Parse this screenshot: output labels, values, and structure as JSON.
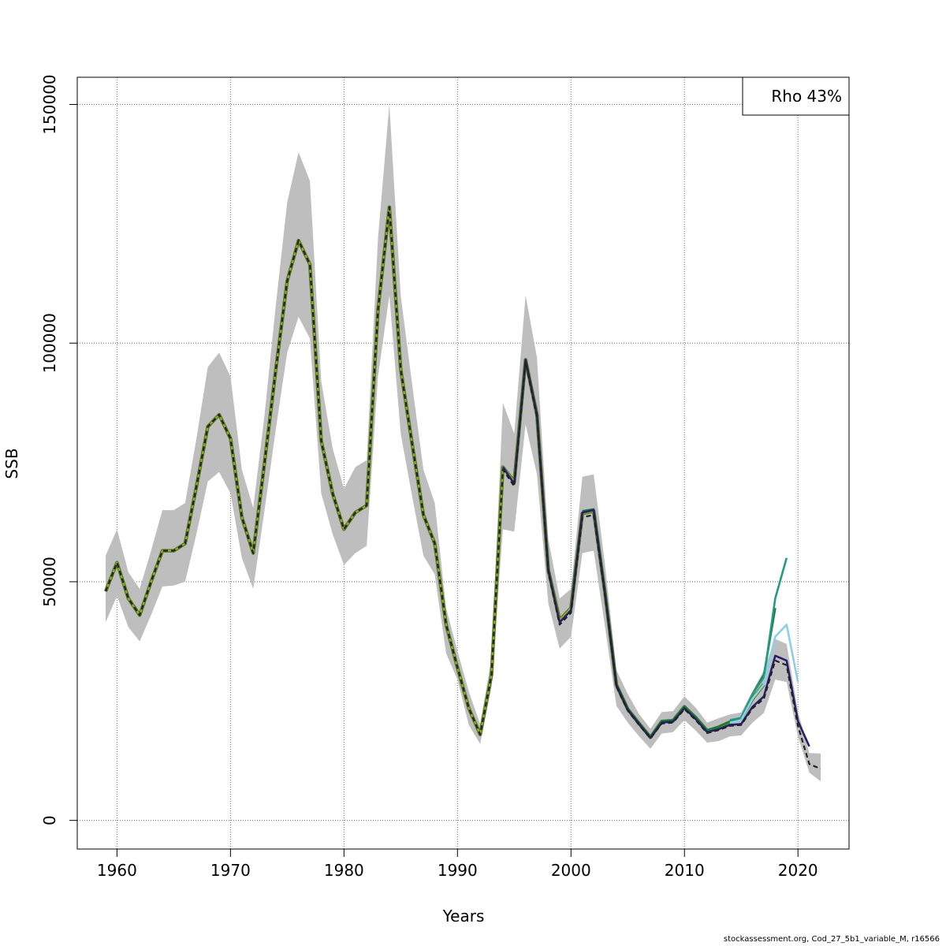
{
  "footer": "stockassessment.org, Cod_27_5b1_variable_M, r16566",
  "chart_data": {
    "type": "line",
    "title": "",
    "xlabel": "Years",
    "ylabel": "SSB",
    "xlim": [
      1956.5,
      2024.5
    ],
    "ylim": [
      -6000,
      155700
    ],
    "xticks": [
      1960,
      1970,
      1980,
      1990,
      2000,
      2010,
      2020
    ],
    "yticks": [
      0,
      50000,
      100000,
      150000
    ],
    "grid": true,
    "legend": {
      "position": "top-right",
      "entries": [
        "Rho 43%"
      ]
    },
    "colors": {
      "band": "#bebebe",
      "final": "#222222",
      "peel1": "#26206b",
      "peel2": "#8ecfe8",
      "peel3": "#239b83",
      "peel4": "#157a3a",
      "peel5": "#8aa832",
      "peel5_edge": "#5a7a22"
    },
    "confidence_band": {
      "x": [
        1959,
        1960,
        1961,
        1962,
        1963,
        1964,
        1965,
        1966,
        1967,
        1968,
        1969,
        1970,
        1971,
        1972,
        1973,
        1974,
        1975,
        1976,
        1977,
        1978,
        1979,
        1980,
        1981,
        1982,
        1983,
        1984,
        1985,
        1986,
        1987,
        1988,
        1989,
        1990,
        1991,
        1992,
        1993,
        1994,
        1995,
        1996,
        1997,
        1998,
        1999,
        2000,
        2001,
        2002,
        2003,
        2004,
        2005,
        2006,
        2007,
        2008,
        2009,
        2010,
        2011,
        2012,
        2013,
        2014,
        2015,
        2016,
        2017,
        2018,
        2019,
        2020,
        2021,
        2022
      ],
      "lower": [
        41500,
        47000,
        40500,
        37500,
        43000,
        49000,
        49200,
        50000,
        60000,
        71000,
        73000,
        68500,
        55000,
        48500,
        65000,
        82000,
        98000,
        105500,
        101000,
        68500,
        60000,
        53500,
        56000,
        57500,
        93000,
        110000,
        81000,
        68000,
        55500,
        51500,
        35000,
        29500,
        20000,
        16000,
        28000,
        61000,
        60500,
        83000,
        72500,
        45500,
        36000,
        38500,
        56000,
        56500,
        40500,
        24000,
        20500,
        17600,
        15000,
        18200,
        18500,
        21000,
        18800,
        16300,
        16600,
        17600,
        17800,
        20500,
        22500,
        29500,
        29000,
        17600,
        10000,
        8200
      ],
      "upper": [
        55500,
        61000,
        52000,
        48500,
        56500,
        65000,
        65000,
        66500,
        80000,
        95000,
        98000,
        93000,
        73500,
        65500,
        85000,
        108000,
        129500,
        140000,
        134000,
        92000,
        78000,
        69500,
        74000,
        75500,
        122000,
        150000,
        110000,
        91500,
        73500,
        66500,
        44500,
        35500,
        27000,
        20200,
        34000,
        87500,
        81000,
        110000,
        97000,
        59000,
        46500,
        48500,
        72000,
        72500,
        53500,
        31500,
        26500,
        22300,
        19200,
        22700,
        22900,
        26000,
        23600,
        20500,
        21400,
        22200,
        22600,
        27000,
        31500,
        38000,
        37000,
        22800,
        14100,
        14000
      ]
    },
    "series": [
      {
        "name": "final",
        "style": "dashed",
        "x": [
          1959,
          1960,
          1961,
          1962,
          1963,
          1964,
          1965,
          1966,
          1967,
          1968,
          1969,
          1970,
          1971,
          1972,
          1973,
          1974,
          1975,
          1976,
          1977,
          1978,
          1979,
          1980,
          1981,
          1982,
          1983,
          1984,
          1985,
          1986,
          1987,
          1988,
          1989,
          1990,
          1991,
          1992,
          1993,
          1994,
          1995,
          1996,
          1997,
          1998,
          1999,
          2000,
          2001,
          2002,
          2003,
          2004,
          2005,
          2006,
          2007,
          2008,
          2009,
          2010,
          2011,
          2012,
          2013,
          2014,
          2015,
          2016,
          2017,
          2018,
          2019,
          2020,
          2021,
          2022
        ],
        "values": [
          48000,
          54000,
          46500,
          43000,
          50000,
          56500,
          56500,
          58000,
          70000,
          82500,
          85000,
          80000,
          63500,
          56000,
          75000,
          94500,
          113000,
          121500,
          116500,
          79500,
          68500,
          61000,
          64500,
          66000,
          107000,
          128500,
          94500,
          79000,
          64000,
          58000,
          41000,
          32000,
          23500,
          18000,
          30500,
          73500,
          70000,
          96000,
          84500,
          52000,
          41000,
          43500,
          63500,
          64000,
          47000,
          28000,
          23000,
          20000,
          17200,
          20300,
          20500,
          23300,
          21000,
          18300,
          18900,
          19800,
          20000,
          23500,
          25500,
          33500,
          32500,
          19800,
          11800,
          10800
        ]
      },
      {
        "name": "peel1",
        "x": [
          1994,
          1995,
          1996,
          1997,
          1998,
          1999,
          2000,
          2001,
          2002,
          2003,
          2004,
          2005,
          2006,
          2007,
          2008,
          2009,
          2010,
          2011,
          2012,
          2013,
          2014,
          2015,
          2016,
          2017,
          2018,
          2019,
          2020,
          2021
        ],
        "values": [
          74000,
          70500,
          96500,
          85000,
          52500,
          41500,
          44000,
          64500,
          65000,
          47500,
          28300,
          23200,
          20200,
          17300,
          20500,
          20700,
          23500,
          21200,
          18500,
          19100,
          20000,
          20200,
          23800,
          26000,
          34500,
          33500,
          20800,
          15500
        ]
      },
      {
        "name": "peel2",
        "x": [
          2014,
          2015,
          2016,
          2017,
          2018,
          2019,
          2020
        ],
        "values": [
          20500,
          21000,
          25500,
          28500,
          38500,
          41000,
          29000
        ]
      },
      {
        "name": "peel3",
        "x": [
          2014,
          2015,
          2016,
          2017,
          2018,
          2019
        ],
        "values": [
          21000,
          21500,
          26500,
          30000,
          46500,
          55000
        ]
      },
      {
        "name": "peel4",
        "x": [
          2001,
          2002,
          2003,
          2004,
          2005,
          2006,
          2007,
          2008,
          2009,
          2010,
          2011,
          2012,
          2013,
          2014,
          2015,
          2016,
          2017,
          2018
        ],
        "values": [
          64800,
          65200,
          47800,
          28500,
          23400,
          20400,
          17500,
          20800,
          21000,
          23900,
          21600,
          18900,
          19600,
          20700,
          21500,
          26500,
          30500,
          44500
        ]
      },
      {
        "name": "peel5",
        "x": [
          1959,
          1960,
          1961,
          1962,
          1963,
          1964,
          1965,
          1966,
          1967,
          1968,
          1969,
          1970,
          1971,
          1972,
          1973,
          1974,
          1975,
          1976,
          1977,
          1978,
          1979,
          1980,
          1981,
          1982,
          1983,
          1984,
          1985,
          1986,
          1987,
          1988,
          1989,
          1990,
          1991,
          1992,
          1993,
          1994,
          1995,
          1996,
          1997,
          1998,
          1999,
          2000,
          2001,
          2002,
          2003,
          2004,
          2005,
          2006,
          2007,
          2008,
          2009,
          2010,
          2011,
          2012,
          2013,
          2014,
          2015,
          2016,
          2017
        ],
        "values": [
          48000,
          54000,
          46500,
          43000,
          50000,
          56500,
          56500,
          58000,
          70000,
          82500,
          85000,
          80000,
          63500,
          56000,
          75000,
          94500,
          113000,
          121500,
          116500,
          79500,
          68500,
          61000,
          64500,
          66000,
          107000,
          128500,
          94500,
          79000,
          64000,
          58000,
          41000,
          32000,
          23500,
          18000,
          30500,
          74000,
          71000,
          96500,
          85000,
          52500,
          42000,
          44500,
          64300,
          64800,
          47600,
          28400,
          23300,
          20300,
          17400,
          20700,
          20900,
          23800,
          21500,
          18800,
          19500,
          20600,
          21300,
          25500,
          28500
        ]
      }
    ]
  }
}
